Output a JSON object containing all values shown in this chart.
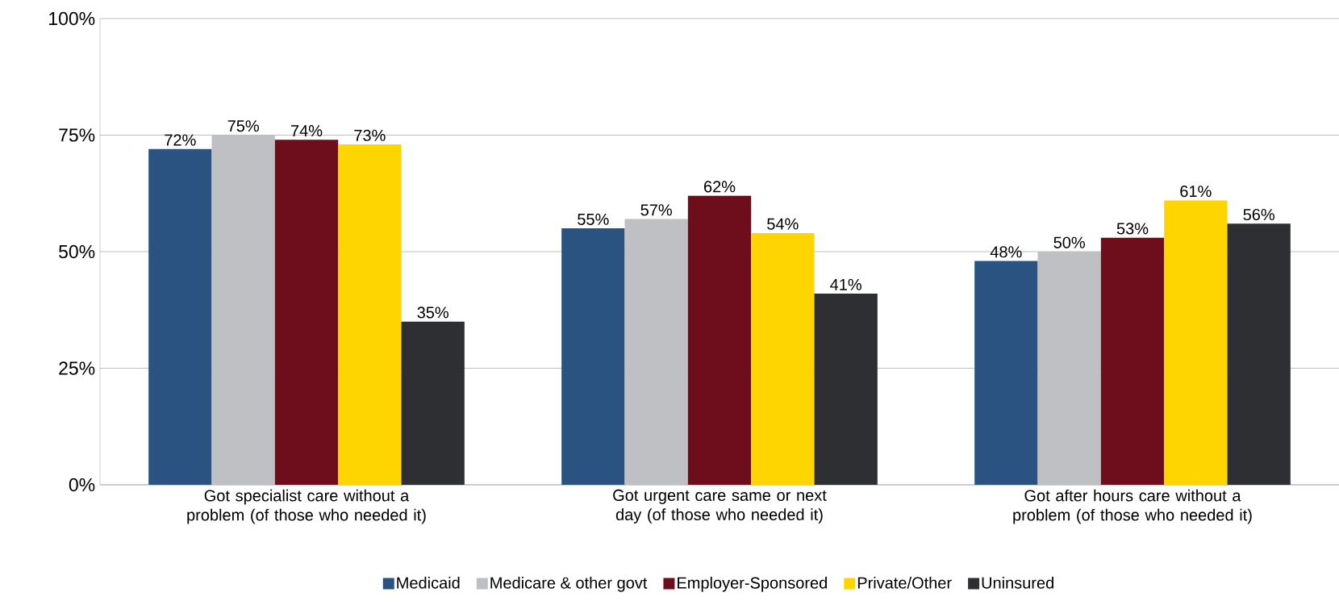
{
  "chart_data": {
    "type": "bar",
    "categories": [
      "Got specialist care without a problem (of those who needed it)",
      "Got urgent care same or next day (of those who needed it)",
      "Got after hours care without a problem (of those who needed it)"
    ],
    "series": [
      {
        "name": "Medicaid",
        "color": "#2a5381",
        "values": [
          72,
          55,
          48
        ],
        "value_labels": [
          "72%",
          "55%",
          "48%"
        ]
      },
      {
        "name": "Medicare & other govt",
        "color": "#bfc0c4",
        "values": [
          75,
          57,
          50
        ],
        "value_labels": [
          "75%",
          "57%",
          "50%"
        ]
      },
      {
        "name": "Employer-Sponsored",
        "color": "#6e0d1b",
        "values": [
          74,
          62,
          53
        ],
        "value_labels": [
          "74%",
          "62%",
          "53%"
        ]
      },
      {
        "name": "Private/Other",
        "color": "#ffd500",
        "values": [
          73,
          54,
          61
        ],
        "value_labels": [
          "73%",
          "54%",
          "61%"
        ]
      },
      {
        "name": "Uninsured",
        "color": "#2e2f33",
        "values": [
          35,
          41,
          56
        ],
        "value_labels": [
          "35%",
          "41%",
          "56%"
        ]
      }
    ],
    "ylim": [
      0,
      100
    ],
    "yticks": [
      {
        "value": 0,
        "label": "0%"
      },
      {
        "value": 25,
        "label": "25%"
      },
      {
        "value": 50,
        "label": "50%"
      },
      {
        "value": 75,
        "label": "75%"
      },
      {
        "value": 100,
        "label": "100%"
      }
    ],
    "grid": "y",
    "legend": "bottom"
  }
}
